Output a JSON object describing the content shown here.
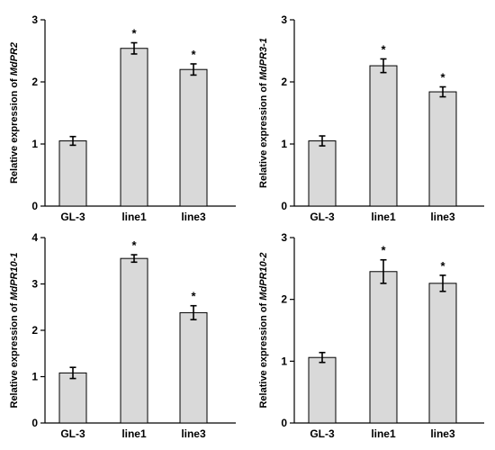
{
  "chart_data": [
    {
      "type": "bar",
      "categories": [
        "GL-3",
        "line1",
        "line3"
      ],
      "values": [
        1.05,
        2.54,
        2.2
      ],
      "errors": [
        0.07,
        0.09,
        0.09
      ],
      "significance": [
        "",
        "*",
        "*"
      ],
      "ylabel_prefix": "Relative expression of ",
      "ylabel_gene": "MdPR2",
      "ylim": [
        0,
        3
      ],
      "yticks": [
        "0",
        "1",
        "2",
        "3"
      ],
      "bar_color": "#d9d9d9"
    },
    {
      "type": "bar",
      "categories": [
        "GL-3",
        "line1",
        "line3"
      ],
      "values": [
        1.05,
        2.26,
        1.84
      ],
      "errors": [
        0.08,
        0.11,
        0.08
      ],
      "significance": [
        "",
        "*",
        "*"
      ],
      "ylabel_prefix": "Relative expression of ",
      "ylabel_gene": "MdPR3-1",
      "ylim": [
        0,
        3
      ],
      "yticks": [
        "0",
        "1",
        "2",
        "3"
      ],
      "bar_color": "#d9d9d9"
    },
    {
      "type": "bar",
      "categories": [
        "GL-3",
        "line1",
        "line3"
      ],
      "values": [
        1.08,
        3.55,
        2.38
      ],
      "errors": [
        0.12,
        0.08,
        0.15
      ],
      "significance": [
        "",
        "*",
        "*"
      ],
      "ylabel_prefix": "Relative expression of ",
      "ylabel_gene": "MdPR10-1",
      "ylim": [
        0,
        4
      ],
      "yticks": [
        "0",
        "1",
        "2",
        "3",
        "4"
      ],
      "bar_color": "#d9d9d9"
    },
    {
      "type": "bar",
      "categories": [
        "GL-3",
        "line1",
        "line3"
      ],
      "values": [
        1.06,
        2.45,
        2.26
      ],
      "errors": [
        0.08,
        0.19,
        0.13
      ],
      "significance": [
        "",
        "*",
        "*"
      ],
      "ylabel_prefix": "Relative expression of ",
      "ylabel_gene": "MdPR10-2",
      "ylim": [
        0,
        3
      ],
      "yticks": [
        "0",
        "1",
        "2",
        "3"
      ],
      "bar_color": "#d9d9d9"
    }
  ]
}
